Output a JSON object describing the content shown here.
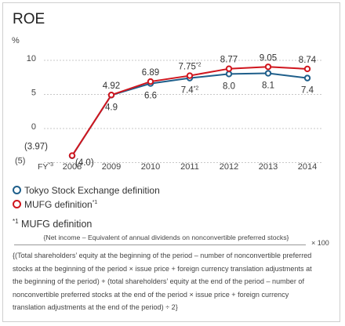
{
  "title": "ROE",
  "chart_data": {
    "type": "line",
    "title": "ROE",
    "ylabel": "%",
    "ylim": [
      -5,
      10
    ],
    "yticks": [
      {
        "value": 10,
        "label": "10"
      },
      {
        "value": 5,
        "label": "5"
      },
      {
        "value": 0,
        "label": "0"
      },
      {
        "value": -5,
        "label": "(5)"
      }
    ],
    "categories": [
      "2008",
      "2009",
      "2010",
      "2011",
      "2012",
      "2013",
      "2014"
    ],
    "x_prefix_label": "FY*3",
    "series": [
      {
        "name": "Tokyo Stock Exchange definition",
        "color": "#1f5f8b",
        "values": [
          -4.0,
          4.9,
          6.6,
          7.4,
          8.0,
          8.1,
          7.4
        ],
        "labels": [
          "(4.0)",
          "4.9",
          "6.6",
          "7.4*2",
          "8.0",
          "8.1",
          "7.4"
        ]
      },
      {
        "name": "MUFG definition*1",
        "color": "#d0161e",
        "values": [
          -3.97,
          4.92,
          6.89,
          7.75,
          8.77,
          9.05,
          8.74
        ],
        "labels": [
          "(3.97)",
          "4.92",
          "6.89",
          "7.75*2",
          "8.77",
          "9.05",
          "8.74"
        ]
      }
    ],
    "grid": true,
    "legend_position": "bottom-left"
  },
  "legend": {
    "tse": {
      "label": "Tokyo Stock Exchange definition",
      "color": "#1f5f8b"
    },
    "mufg": {
      "label": "MUFG definition",
      "sup": "*1",
      "color": "#d0161e"
    }
  },
  "note": {
    "title": "MUFG definition",
    "marker": "*1",
    "numerator": "{Net income – Equivalent of annual dividends on nonconvertible preferred stocks}",
    "multiplier": "× 100",
    "denominator": "{(Total shareholders’ equity at the beginning of the period – number of nonconvertible preferred stocks at the beginning of the period × issue price + foreign currency translation adjustments at the beginning of the period) + (total shareholders’ equity at the end of the period – number of nonconvertible preferred stocks at the end of the period × issue price + foreign currency translation adjustments at the end of the period) ÷ 2}"
  }
}
